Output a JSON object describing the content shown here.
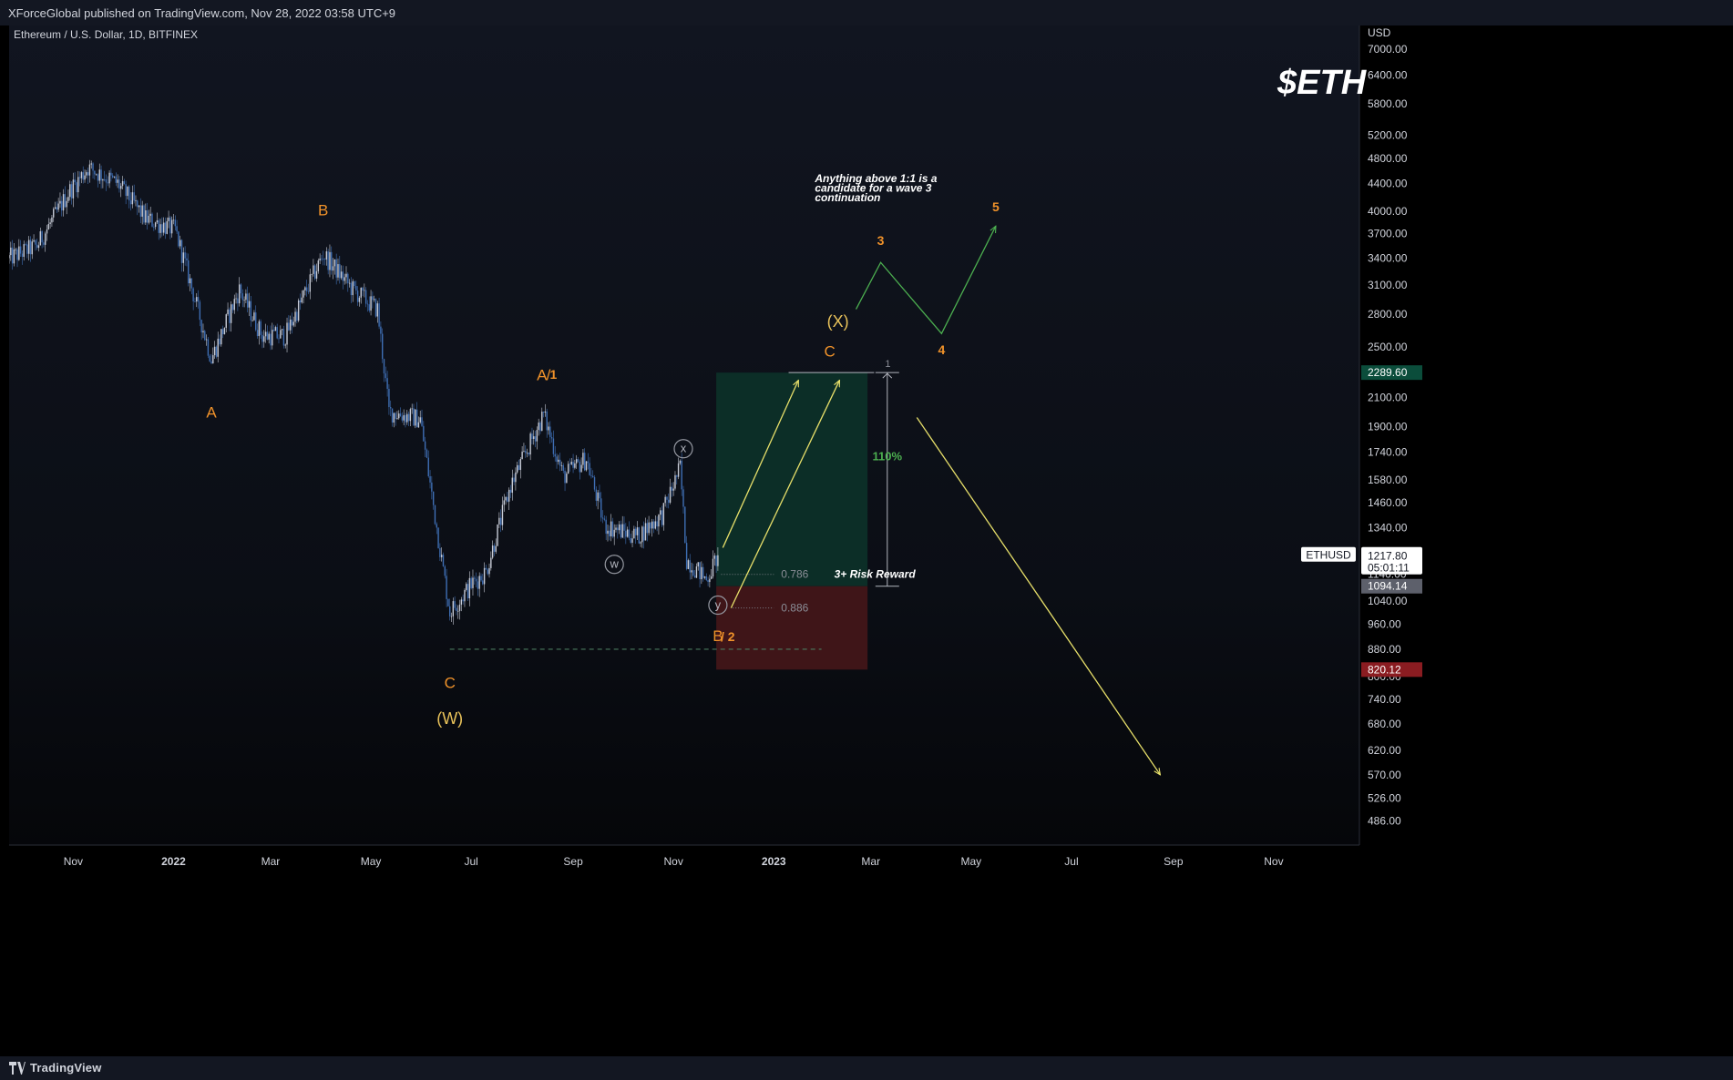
{
  "header": {
    "publish_line": "XForceGlobal published on TradingView.com, Nov 28, 2022 03:58 UTC+9",
    "symbol_line": "Ethereum / U.S. Dollar, 1D, BITFINEX"
  },
  "footer": {
    "brand": "TradingView"
  },
  "chart_data": {
    "type": "candlestick",
    "title": "$ETH",
    "currency_label": "USD",
    "price_axis_ticks": [
      "7000.00",
      "6400.00",
      "5800.00",
      "5200.00",
      "4800.00",
      "4400.00",
      "4000.00",
      "3700.00",
      "3400.00",
      "3100.00",
      "2800.00",
      "2500.00",
      "2100.00",
      "1900.00",
      "1740.00",
      "1580.00",
      "1460.00",
      "1340.00",
      "1140.00",
      "1040.00",
      "960.00",
      "880.00",
      "800.00",
      "740.00",
      "680.00",
      "620.00",
      "570.00",
      "526.00",
      "486.00"
    ],
    "time_axis_ticks": [
      "Nov",
      "2022",
      "Mar",
      "May",
      "Jul",
      "Sep",
      "Nov",
      "2023",
      "Mar",
      "May",
      "Jul",
      "Sep",
      "Nov"
    ],
    "time_axis_bold": [
      "2022",
      "2023"
    ],
    "time_axis_dates": [
      "2021-11",
      "2022-01",
      "2022-03",
      "2022-05",
      "2022-07",
      "2022-09",
      "2022-11",
      "2023-01",
      "2023-03",
      "2023-05",
      "2023-07",
      "2023-09",
      "2023-11"
    ],
    "y_range": [
      450,
      7600
    ],
    "y_scale": "log",
    "x_range": [
      "2021-09-23",
      "2023-12-22"
    ],
    "price_anchors": [
      {
        "date": "2021-09-23",
        "price": 3400
      },
      {
        "date": "2021-10-10",
        "price": 3550
      },
      {
        "date": "2021-10-30",
        "price": 4300
      },
      {
        "date": "2021-11-10",
        "price": 4650
      },
      {
        "date": "2021-11-28",
        "price": 4400
      },
      {
        "date": "2021-12-15",
        "price": 3900
      },
      {
        "date": "2022-01-02",
        "price": 3750
      },
      {
        "date": "2022-01-10",
        "price": 3200
      },
      {
        "date": "2022-01-24",
        "price": 2400
      },
      {
        "date": "2022-02-10",
        "price": 3050
      },
      {
        "date": "2022-02-24",
        "price": 2600
      },
      {
        "date": "2022-03-10",
        "price": 2600
      },
      {
        "date": "2022-04-02",
        "price": 3450
      },
      {
        "date": "2022-04-20",
        "price": 3050
      },
      {
        "date": "2022-05-05",
        "price": 2850
      },
      {
        "date": "2022-05-12",
        "price": 2000
      },
      {
        "date": "2022-05-31",
        "price": 1950
      },
      {
        "date": "2022-06-13",
        "price": 1200
      },
      {
        "date": "2022-06-18",
        "price": 1000
      },
      {
        "date": "2022-07-01",
        "price": 1100
      },
      {
        "date": "2022-07-10",
        "price": 1150
      },
      {
        "date": "2022-07-25",
        "price": 1550
      },
      {
        "date": "2022-08-14",
        "price": 1980
      },
      {
        "date": "2022-08-26",
        "price": 1600
      },
      {
        "date": "2022-09-09",
        "price": 1700
      },
      {
        "date": "2022-09-20",
        "price": 1350
      },
      {
        "date": "2022-10-10",
        "price": 1300
      },
      {
        "date": "2022-10-25",
        "price": 1400
      },
      {
        "date": "2022-11-05",
        "price": 1650
      },
      {
        "date": "2022-11-09",
        "price": 1200
      },
      {
        "date": "2022-11-21",
        "price": 1120
      },
      {
        "date": "2022-11-28",
        "price": 1217.8
      }
    ],
    "last_price": {
      "symbol": "ETHUSD",
      "price": "1217.80",
      "countdown": "05:01:11"
    },
    "price_labels": [
      {
        "text": "2289.60",
        "price": 2289.6,
        "bg": "#0b4d3b"
      },
      {
        "text": "1094.14",
        "price": 1094.14,
        "bg": "#5d606b"
      },
      {
        "text": "820.12",
        "price": 820.12,
        "bg": "#8a1c21"
      }
    ],
    "position_tool": {
      "start": "2022-11-27",
      "end": "2023-02-27",
      "target": 2289.6,
      "entry": 1094.14,
      "stop": 820.12,
      "target_color": "#0c2e27",
      "stop_color": "#3f1518",
      "label": "3+ Risk Reward"
    },
    "percent_measure": {
      "date": "2023-03-11",
      "from": 1094.14,
      "to": 2289.6,
      "label": "110%",
      "color": "#4caf50"
    },
    "fib_levels": [
      {
        "ratio": "0.786",
        "price": 1140,
        "from": "2022-11-30",
        "to": "2023-01-01"
      },
      {
        "ratio": "0.886",
        "price": 1015,
        "from": "2022-12-07",
        "to": "2023-01-01"
      },
      {
        "ratio": "1",
        "price": 2289.6,
        "from": "2023-01-10",
        "to": "2023-03-03"
      }
    ],
    "support_line": {
      "price": 880,
      "from": "2022-06-18",
      "to": "2023-01-30",
      "color": "#4a7a5e"
    },
    "wave_labels": [
      {
        "text": "A",
        "date": "2022-01-24",
        "price": 1960,
        "color": "#f0922a"
      },
      {
        "text": "B",
        "date": "2022-04-02",
        "price": 3940,
        "color": "#f0922a"
      },
      {
        "text": "C",
        "date": "2022-06-18",
        "price": 770,
        "color": "#f0922a"
      },
      {
        "text": "(W)",
        "date": "2022-06-18",
        "price": 680,
        "color": "#e8c25a"
      },
      {
        "text": "A",
        "date": "2022-08-13",
        "price": 2230,
        "color": "#f0922a"
      },
      {
        "text": "/",
        "date": "2022-08-17",
        "price": 2230,
        "color": "#f0922a"
      },
      {
        "text": "1",
        "date": "2022-08-20",
        "price": 2240,
        "color": "#f0922a",
        "bold": true
      },
      {
        "text": "B",
        "date": "2022-11-28",
        "price": 905,
        "color": "#f0922a"
      },
      {
        "text": "/ 2",
        "date": "2022-12-04",
        "price": 905,
        "color": "#f0922a",
        "bold": true
      },
      {
        "text": "C",
        "date": "2023-02-04",
        "price": 2420,
        "color": "#f0922a"
      },
      {
        "text": "(X)",
        "date": "2023-02-09",
        "price": 2680,
        "color": "#e8c25a"
      },
      {
        "text": "3",
        "date": "2023-03-07",
        "price": 3560,
        "color": "#f0922a",
        "bold": true
      },
      {
        "text": "4",
        "date": "2023-04-13",
        "price": 2440,
        "color": "#f0922a",
        "bold": true
      },
      {
        "text": "5",
        "date": "2023-05-16",
        "price": 4000,
        "color": "#f0922a",
        "bold": true
      }
    ],
    "circle_labels": [
      {
        "text": "w",
        "date": "2022-09-26",
        "price": 1180
      },
      {
        "text": "x",
        "date": "2022-11-07",
        "price": 1760
      },
      {
        "text": "y",
        "date": "2022-11-28",
        "price": 1025
      }
    ],
    "projection_arrows": [
      {
        "from": [
          "2022-12-01",
          1250
        ],
        "to": [
          "2023-01-16",
          2230
        ],
        "color": "#e7df6a"
      },
      {
        "from": [
          "2022-12-06",
          1015
        ],
        "to": [
          "2023-02-10",
          2230
        ],
        "color": "#e7df6a"
      },
      {
        "from": [
          "2023-03-29",
          1960
        ],
        "to": [
          "2023-08-24",
          570
        ],
        "color": "#e7df6a"
      }
    ],
    "wave_path": {
      "points": [
        [
          "2023-02-20",
          2850
        ],
        [
          "2023-03-07",
          3350
        ],
        [
          "2023-04-13",
          2620
        ],
        [
          "2023-05-16",
          3800
        ]
      ],
      "color": "#4caf50"
    },
    "annotations": [
      {
        "text": "Anything above 1:1 is a",
        "date": "2023-01-26",
        "price": 4420
      },
      {
        "text": "candidate for a wave 3",
        "date": "2023-01-26",
        "price": 4280
      },
      {
        "text": "continuation",
        "date": "2023-01-26",
        "price": 4140
      }
    ]
  }
}
